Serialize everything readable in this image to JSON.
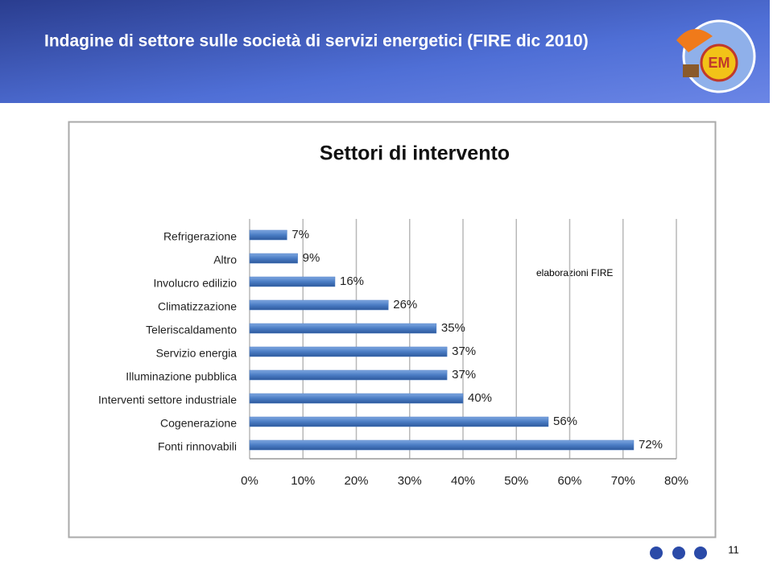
{
  "header": {
    "title": "Indagine di settore sulle società di servizi energetici (FIRE dic 2010)"
  },
  "chart_data": {
    "type": "hbar",
    "title": "Settori di intervento",
    "categories": [
      "Refrigerazione",
      "Altro",
      "Involucro edilizio",
      "Climatizzazione",
      "Teleriscaldamento",
      "Servizio energia",
      "Illuminazione pubblica",
      "Interventi settore industriale",
      "Cogenerazione",
      "Fonti rinnovabili"
    ],
    "values": [
      7,
      9,
      16,
      26,
      35,
      37,
      37,
      40,
      56,
      72
    ],
    "value_labels": [
      "7%",
      "9%",
      "16%",
      "26%",
      "35%",
      "37%",
      "37%",
      "40%",
      "56%",
      "72%"
    ],
    "color": "#4a7cc4",
    "xlim": [
      0,
      80
    ],
    "xticks": [
      {
        "value": 0,
        "label": "0%"
      },
      {
        "value": 10,
        "label": "10%"
      },
      {
        "value": 20,
        "label": "20%"
      },
      {
        "value": 30,
        "label": "30%"
      },
      {
        "value": 40,
        "label": "40%"
      },
      {
        "value": 50,
        "label": "50%"
      },
      {
        "value": 60,
        "label": "60%"
      },
      {
        "value": 70,
        "label": "70%"
      },
      {
        "value": 80,
        "label": "80%"
      }
    ],
    "grid": true
  },
  "note": "elaborazioni FIRE",
  "page_number": "11"
}
